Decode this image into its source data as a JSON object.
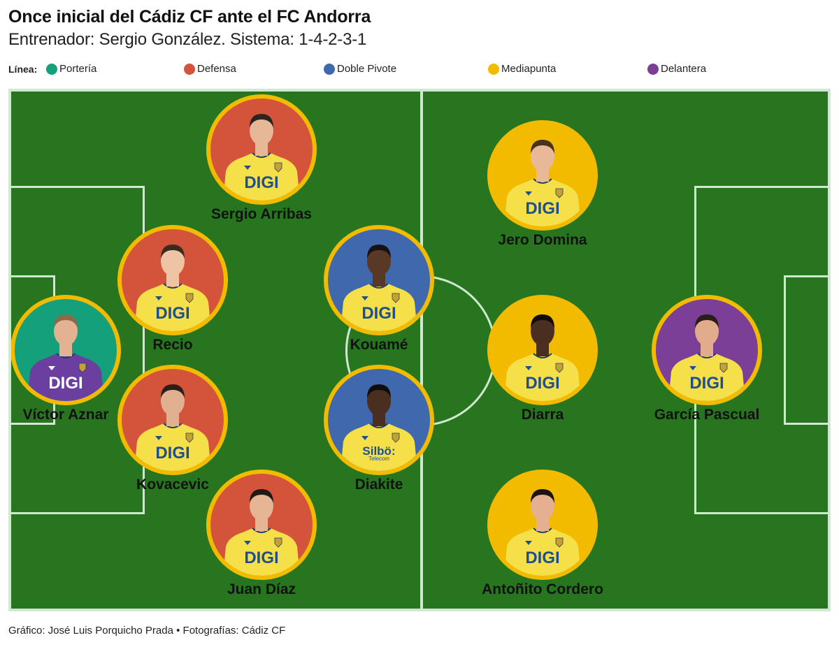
{
  "header": {
    "title": "Once inicial del Cádiz CF ante el FC Andorra",
    "subtitle": "Entrenador: Sergio González. Sistema: 1-4-2-3-1"
  },
  "legend": {
    "label": "Línea:",
    "items": [
      {
        "label": "Portería",
        "color": "#14a07a"
      },
      {
        "label": "Defensa",
        "color": "#d4533b"
      },
      {
        "label": "Doble Pivote",
        "color": "#3f68ad"
      },
      {
        "label": "Mediapunta",
        "color": "#f2bb00"
      },
      {
        "label": "Delantera",
        "color": "#7b3f98"
      }
    ]
  },
  "pitch": {
    "grass_color": "#27761f",
    "line_color": "#d0e8d0",
    "ring_color": "#f2bb00"
  },
  "players": [
    {
      "name": "Víctor Aznar",
      "line": "Portería",
      "bg": "#14a07a",
      "shirt": "#6a3fa0",
      "sponsor": "DIGI",
      "sponsor_color": "#ffffff",
      "skin": "#e2b292",
      "hair": "#8a6a4a"
    },
    {
      "name": "Sergio Arribas",
      "line": "Defensa",
      "bg": "#d4533b",
      "shirt": "#f5e04a",
      "sponsor": "DIGI",
      "sponsor_color": "#1f4f8c",
      "skin": "#e7b898",
      "hair": "#2b2520"
    },
    {
      "name": "Recio",
      "line": "Defensa",
      "bg": "#d4533b",
      "shirt": "#f5e04a",
      "sponsor": "DIGI",
      "sponsor_color": "#1f4f8c",
      "skin": "#efc4a4",
      "hair": "#3a2a20"
    },
    {
      "name": "Kovacevic",
      "line": "Defensa",
      "bg": "#d4533b",
      "shirt": "#f5e04a",
      "sponsor": "DIGI",
      "sponsor_color": "#1f4f8c",
      "skin": "#e0b090",
      "hair": "#2a1e18"
    },
    {
      "name": "Juan Díaz",
      "line": "Defensa",
      "bg": "#d4533b",
      "shirt": "#f5e04a",
      "sponsor": "DIGI",
      "sponsor_color": "#1f4f8c",
      "skin": "#e6b594",
      "hair": "#1e1a18"
    },
    {
      "name": "Kouamé",
      "line": "Doble Pivote",
      "bg": "#3f68ad",
      "shirt": "#f5e04a",
      "sponsor": "DIGI",
      "sponsor_color": "#1f4f8c",
      "skin": "#5a3826",
      "hair": "#1a1210"
    },
    {
      "name": "Diakite",
      "line": "Doble Pivote",
      "bg": "#3f68ad",
      "shirt": "#f5e04a",
      "sponsor": "Silbö:",
      "sponsor_sub": "Telecom",
      "sponsor_color": "#1f4f8c",
      "skin": "#4a2e20",
      "hair": "#120c0a"
    },
    {
      "name": "Jero Domina",
      "line": "Mediapunta",
      "bg": "#f2bb00",
      "shirt": "#f5e04a",
      "sponsor": "DIGI",
      "sponsor_color": "#1f4f8c",
      "skin": "#e8b898",
      "hair": "#4a3020"
    },
    {
      "name": "Diarra",
      "line": "Mediapunta",
      "bg": "#f2bb00",
      "shirt": "#f5e04a",
      "sponsor": "DIGI",
      "sponsor_color": "#1f4f8c",
      "skin": "#4a2e20",
      "hair": "#120c0a"
    },
    {
      "name": "Antoñito Cordero",
      "line": "Mediapunta",
      "bg": "#f2bb00",
      "shirt": "#f5e04a",
      "sponsor": "DIGI",
      "sponsor_color": "#1f4f8c",
      "skin": "#e4b090",
      "hair": "#1a1412"
    },
    {
      "name": "García Pascual",
      "line": "Delantera",
      "bg": "#7b3f98",
      "shirt": "#f5e04a",
      "sponsor": "DIGI",
      "sponsor_color": "#1f4f8c",
      "skin": "#e0ac8c",
      "hair": "#2a1e18"
    }
  ],
  "footer": {
    "credits": "Gráfico: José Luis Porquicho Prada • Fotografías: Cádiz CF"
  }
}
